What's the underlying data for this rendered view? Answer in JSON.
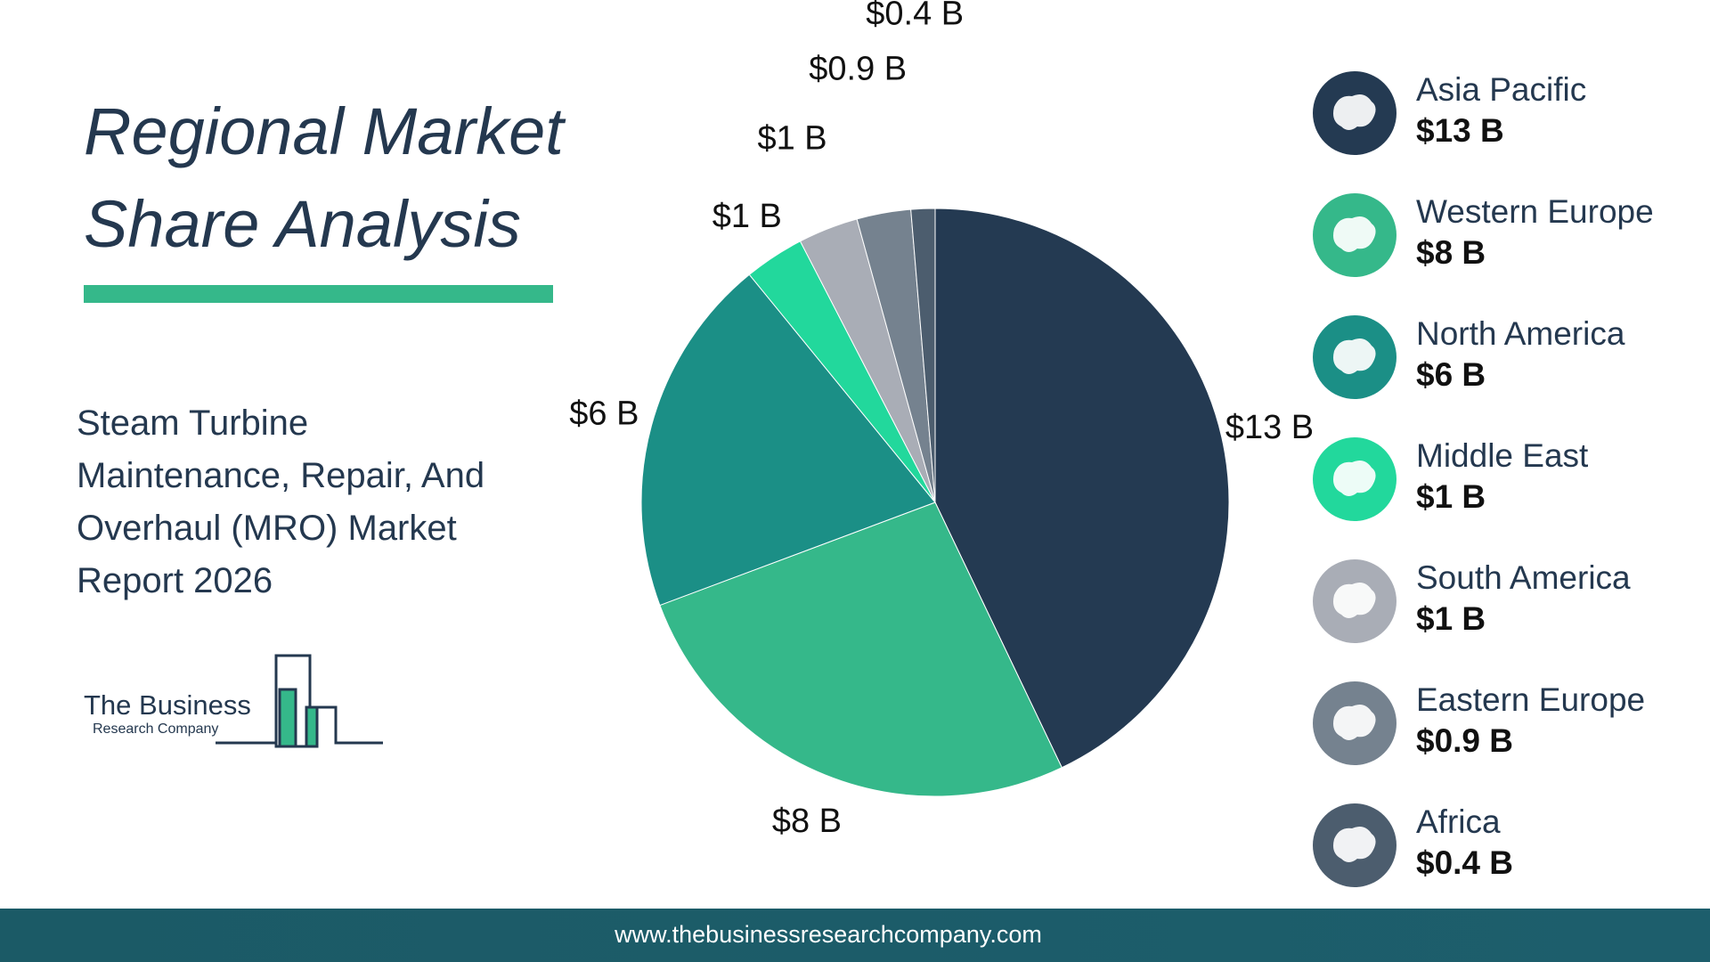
{
  "title": "Regional Market Share Analysis",
  "subtitle": "Steam Turbine Maintenance, Repair, And Overhaul (MRO) Market Report 2026",
  "logo": {
    "line1": "The Business",
    "line2": "Research Company"
  },
  "footer": {
    "url": "www.thebusinessresearchcompany.com"
  },
  "colors": {
    "title_bar": "#35b88a",
    "footer_left": "#1b5a66",
    "footer_right": "#1d5e6c"
  },
  "chart_data": {
    "type": "pie",
    "title": "",
    "start_angle_deg": 0,
    "direction": "clockwise",
    "slices": [
      {
        "name": "Asia Pacific",
        "value": 13,
        "label": "$13 B",
        "legend_value": "$13 B",
        "color": "#243a52",
        "icon": "asia-map-icon"
      },
      {
        "name": "Western Europe",
        "value": 8,
        "label": "$8 B",
        "legend_value": "$8 B",
        "color": "#35b88a",
        "icon": "europe-map-icon"
      },
      {
        "name": "North America",
        "value": 6,
        "label": "$6 B",
        "legend_value": "$6 B",
        "color": "#1b8f86",
        "icon": "north-america-map-icon"
      },
      {
        "name": "Middle East",
        "value": 1,
        "label": "$1 B",
        "legend_value": "$1 B",
        "color": "#22d89c",
        "icon": "middle-east-map-icon"
      },
      {
        "name": "South America",
        "value": 1,
        "label": "$1 B",
        "legend_value": "$1 B",
        "color": "#a9adb6",
        "icon": "south-america-map-icon"
      },
      {
        "name": "Eastern Europe",
        "value": 0.9,
        "label": "$0.9 B",
        "legend_value": "$0.9 B",
        "color": "#75828f",
        "icon": "eastern-europe-map-icon"
      },
      {
        "name": "Africa",
        "value": 0.4,
        "label": "$0.4 B",
        "legend_value": "$0.4 B",
        "color": "#4c5d6e",
        "icon": "africa-map-icon"
      }
    ]
  }
}
